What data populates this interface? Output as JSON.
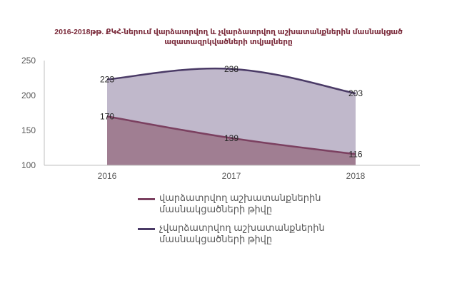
{
  "title": {
    "line1": "2016-2018թթ. ՔԿՀ-ներում վարձատրվող և չվարձատրվող աշխատանքներին մասնակցած",
    "line2": "ազատազրկվածների տվյալները"
  },
  "colors": {
    "series1_line": "#7b4060",
    "series1_fill": "#a07e92",
    "series2_line": "#4a3a66",
    "series2_fill": "#c0b8cb",
    "axis": "#bfbfbf"
  },
  "chart_data": {
    "type": "area",
    "x": [
      "2016",
      "2017",
      "2018"
    ],
    "y_ticks": [
      "100",
      "150",
      "200",
      "250"
    ],
    "ylim": [
      100,
      250
    ],
    "series": [
      {
        "name": "վարձատրվող աշխատանքներին մասնակցածների թիվը",
        "values": [
          170,
          139,
          116
        ],
        "labels": [
          "170",
          "139",
          "116"
        ]
      },
      {
        "name": "չվարձատրվող աշխատանքներին մասնակցածների թիվը",
        "values": [
          223,
          238,
          203
        ],
        "labels": [
          "223",
          "238",
          "203"
        ]
      }
    ],
    "legend": "bottom",
    "grid": false
  }
}
